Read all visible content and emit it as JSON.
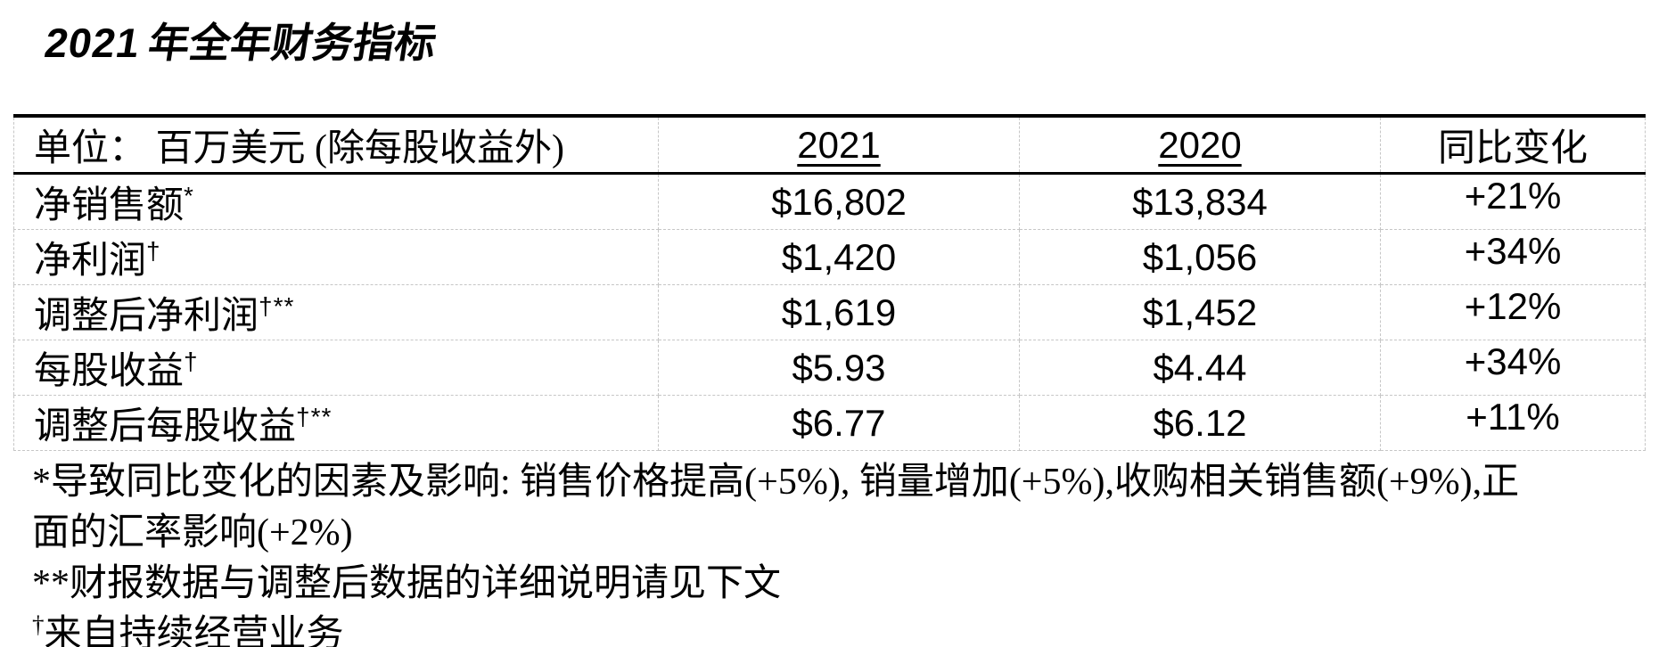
{
  "title": {
    "year": "2021",
    "rest": "年全年财务指标"
  },
  "table": {
    "header": {
      "unit_label": "单位： 百万美元 (除每股收益外)",
      "col_2021": "2021",
      "col_2020": "2020",
      "col_change": "同比变化"
    },
    "rows": [
      {
        "label": "净销售额",
        "footnote_mark": "*",
        "y2021": "$16,802",
        "y2020": "$13,834",
        "change": "+21%"
      },
      {
        "label": "净利润",
        "footnote_mark": "†",
        "y2021": "$1,420",
        "y2020": "$1,056",
        "change": "+34%"
      },
      {
        "label": "调整后净利润",
        "footnote_mark": "†**",
        "y2021": "$1,619",
        "y2020": "$1,452",
        "change": "+12%"
      },
      {
        "label": "每股收益",
        "footnote_mark": "†",
        "y2021": "$5.93",
        "y2020": "$4.44",
        "change": "+34%"
      },
      {
        "label": "调整后每股收益",
        "footnote_mark": "†**",
        "y2021": "$6.77",
        "y2020": "$6.12",
        "change": "+11%"
      }
    ]
  },
  "footnotes": {
    "factors_line1": "*导致同比变化的因素及影响: 销售价格提高(+5%), 销量增加(+5%),收购相关销售额(+9%),正",
    "factors_line2": "面的汇率影响(+2%)",
    "adjusted_data_note": "**财报数据与调整后数据的详细说明请见下文",
    "continuing_ops_mark": "†",
    "continuing_ops_note": "来自持续经营业务"
  },
  "colors": {
    "text": "#000000",
    "grid_dashed": "#c6c6c6",
    "rule_solid": "#000000",
    "background": "#ffffff"
  }
}
